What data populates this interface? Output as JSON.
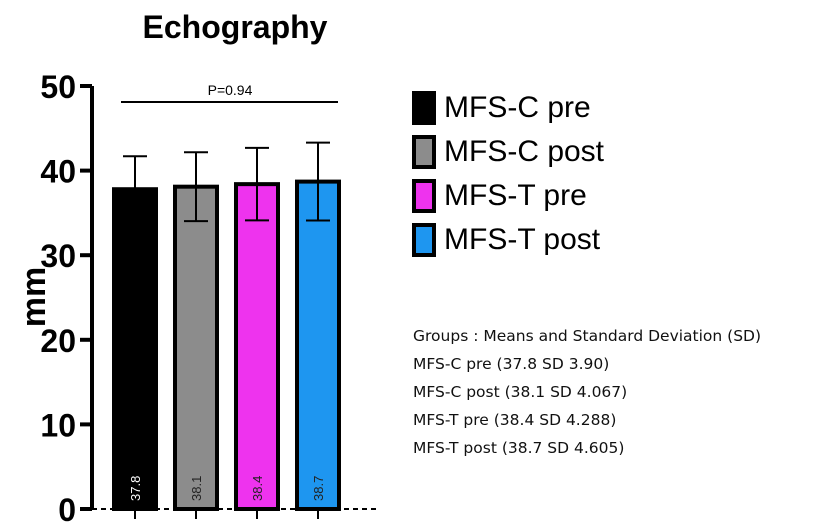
{
  "chart_data": {
    "type": "bar",
    "title": "Echography",
    "xlabel": "",
    "ylabel": "mm",
    "ylim": [
      0,
      50
    ],
    "yticks": [
      0,
      10,
      20,
      30,
      40,
      50
    ],
    "categories": [
      "MFS-C pre",
      "MFS-C post",
      "MFS-T pre",
      "MFS-T post"
    ],
    "values": [
      37.8,
      38.1,
      38.4,
      38.7
    ],
    "sd": [
      3.9,
      4.067,
      4.288,
      4.605
    ],
    "value_labels": [
      "37.8",
      "38.1",
      "38.4",
      "38.7"
    ],
    "colors": [
      "#000000",
      "#8c8c8c",
      "#ee33ee",
      "#1e96f0"
    ],
    "value_label_colors": [
      "#ffffff",
      "#222222",
      "#222222",
      "#222222"
    ],
    "annotation": "P=0.94",
    "legend_position": "right",
    "grid": false
  },
  "notes": {
    "heading": "Groups : Means and Standard Deviation (SD)",
    "lines": [
      "MFS-C pre (37.8 SD 3.90)",
      "MFS-C post (38.1 SD 4.067)",
      "MFS-T pre (38.4 SD 4.288)",
      "MFS-T post (38.7 SD 4.605)"
    ]
  }
}
